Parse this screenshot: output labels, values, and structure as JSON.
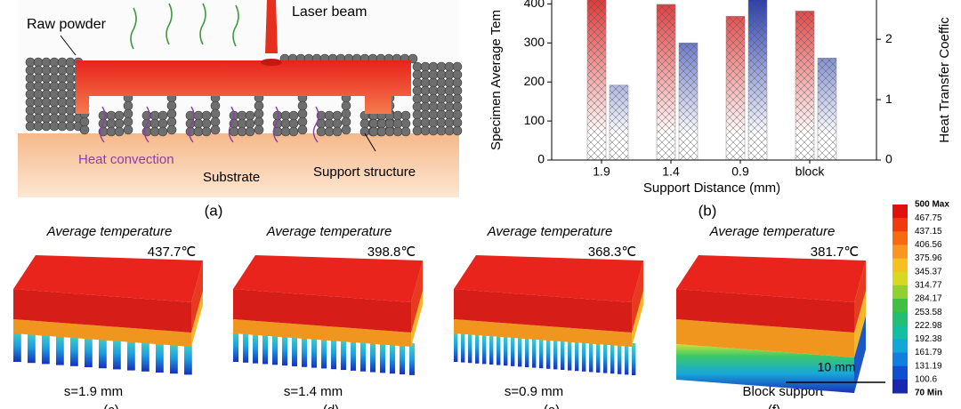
{
  "schematic": {
    "raw_powder": "Raw powder",
    "laser_beam": "Laser beam",
    "heat_convection": "Heat convection",
    "substrate": "Substrate",
    "support_structure": "Support structure",
    "panel_label": "(a)"
  },
  "chart_data": {
    "type": "bar",
    "panel_label": "(b)",
    "xlabel": "Support Distance (mm)",
    "ylabel": "Specimen Average Tem",
    "y2label": "Heat Transfer Coeffic",
    "categories": [
      "1.9",
      "1.4",
      "0.9",
      "block"
    ],
    "series": [
      {
        "color": "#e03a3a",
        "values": [
          437.7,
          398.8,
          368.3,
          381.7
        ]
      },
      {
        "color": "#2a3fb0",
        "axis": "y2",
        "values": [
          1.24,
          1.94,
          2.7,
          1.69
        ]
      }
    ],
    "ylim": [
      0,
      410
    ],
    "yticks": [
      0,
      100,
      200,
      300,
      400
    ],
    "y2lim": [
      0,
      2.65
    ],
    "y2ticks": [
      0,
      1,
      2
    ]
  },
  "simulations": [
    {
      "heading": "Average temperature",
      "temperature": "437.7℃",
      "caption": "s=1.9 mm",
      "panel_label": "(c)"
    },
    {
      "heading": "Average temperature",
      "temperature": "398.8℃",
      "caption": "s=1.4 mm",
      "panel_label": "(d)"
    },
    {
      "heading": "Average temperature",
      "temperature": "368.3℃",
      "caption": "s=0.9 mm",
      "panel_label": "(e)"
    },
    {
      "heading": "Average temperature",
      "temperature": "381.7℃",
      "caption": "Block support",
      "panel_label": "(f)"
    }
  ],
  "scale_bar": "10 mm",
  "colorbar": {
    "labels": [
      "500 Max",
      "467.75",
      "437.15",
      "406.56",
      "375.96",
      "345.37",
      "314.77",
      "284.17",
      "253.58",
      "222.98",
      "192.38",
      "161.79",
      "131.19",
      "100.6",
      "70 Min"
    ]
  }
}
